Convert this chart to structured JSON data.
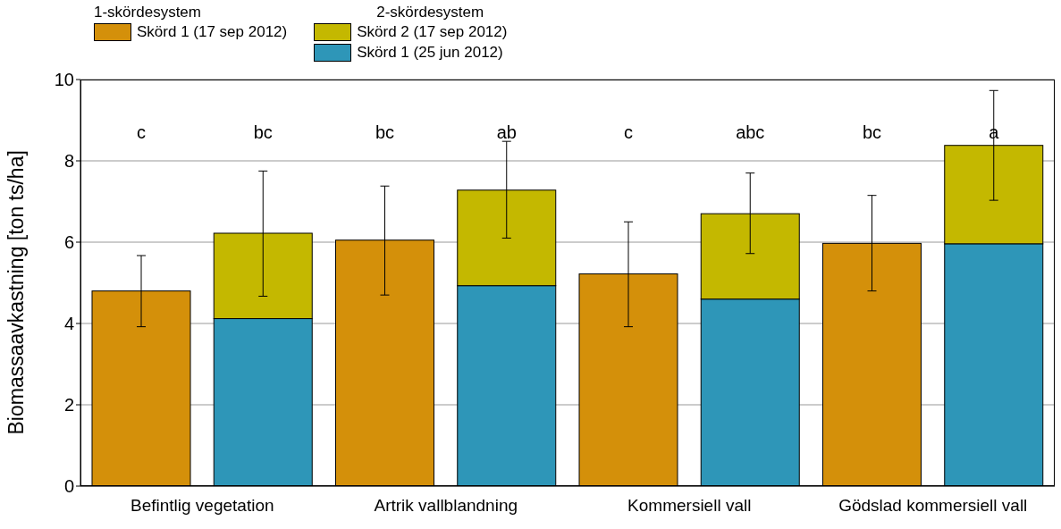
{
  "chart_data": {
    "type": "bar",
    "stacked": true,
    "ylabel": "Biomassaavkastning [ton ts/ha]",
    "categories": [
      "Befintlig vegetation",
      null,
      "Artrik vallblandning",
      null,
      "Kommersiell vall",
      null,
      "Gödslad kommersiell vall",
      null
    ],
    "series": [
      {
        "name": "Skörd 1 (17 sep 2012)",
        "color": "#d4900a",
        "values": [
          4.8,
          null,
          6.05,
          null,
          5.22,
          null,
          5.97,
          null
        ],
        "errors": [
          [
            3.92,
            5.67
          ],
          null,
          [
            4.7,
            7.38
          ],
          null,
          [
            3.92,
            6.5
          ],
          null,
          [
            4.8,
            7.15
          ],
          null
        ]
      },
      {
        "name": "Skörd 1 (25 jun 2012)",
        "color": "#2e96b8",
        "values": [
          null,
          4.12,
          null,
          4.93,
          null,
          4.6,
          null,
          5.96
        ]
      },
      {
        "name": "Skörd 2 (17 sep 2012)",
        "color": "#c4b800",
        "values": [
          null,
          2.1,
          null,
          2.35,
          null,
          2.1,
          null,
          2.42
        ],
        "errors": [
          null,
          [
            4.67,
            7.75
          ],
          null,
          [
            6.1,
            8.48
          ],
          null,
          [
            5.72,
            7.7
          ],
          null,
          [
            7.03,
            9.73
          ]
        ]
      }
    ],
    "annotations": [
      "c",
      "bc",
      "bc",
      "ab",
      "c",
      "abc",
      "bc",
      "a",
      "1-skördesystem",
      "2-skördesystem"
    ],
    "ylim": [
      0,
      10
    ],
    "yticks": [
      0,
      2,
      4,
      6,
      8,
      10
    ],
    "grid": "y",
    "legend": "top left"
  }
}
